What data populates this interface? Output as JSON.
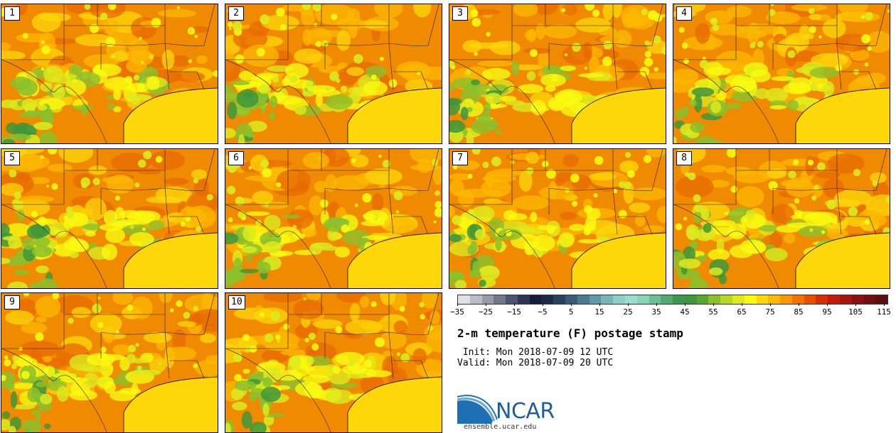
{
  "panels": [
    {
      "label": "1"
    },
    {
      "label": "2"
    },
    {
      "label": "3"
    },
    {
      "label": "4"
    },
    {
      "label": "5"
    },
    {
      "label": "6"
    },
    {
      "label": "7"
    },
    {
      "label": "8"
    },
    {
      "label": "9"
    },
    {
      "label": "10"
    }
  ],
  "colorbar": {
    "tick_labels": [
      "−35",
      "−25",
      "−15",
      "−5",
      "5",
      "15",
      "25",
      "35",
      "45",
      "55",
      "65",
      "75",
      "85",
      "95",
      "105",
      "115"
    ],
    "colors": [
      "#e0e0e6",
      "#bcbcc8",
      "#9a9aaa",
      "#72788c",
      "#4a5470",
      "#2a3656",
      "#141e3c",
      "#1a2a48",
      "#2a4060",
      "#3a5a78",
      "#4c7890",
      "#6098a6",
      "#78b4b8",
      "#90cec8",
      "#9adcd0",
      "#8ad2b8",
      "#6cbe94",
      "#52aa70",
      "#3e9650",
      "#40963a",
      "#5aa634",
      "#8cc02a",
      "#b8d624",
      "#dcea1e",
      "#fafa10",
      "#fed70a",
      "#fcb800",
      "#f89800",
      "#f27400",
      "#e85000",
      "#d82e06",
      "#c41a0c",
      "#a81410",
      "#8c1010",
      "#701010",
      "#581010"
    ]
  },
  "title": "2-m temperature (F) postage stamp",
  "init": " Init: Mon 2018-07-09 12 UTC",
  "valid": "Valid: Mon 2018-07-09 20 UTC",
  "logo": {
    "text": "NCAR",
    "colors": {
      "arc_blue": "#1f6fb4",
      "arc_light": "#6aa4d8"
    }
  },
  "site": "ensemble.ucar.edu",
  "map_colors": {
    "hot": "#f08a00",
    "warm": "#fcb800",
    "mild": "#fed70a",
    "yellow": "#fafa10",
    "lime": "#dcea1e",
    "green": "#8cc02a",
    "dkgreen": "#40963a",
    "gulf": "#fed70a",
    "deep": "#e86a00"
  }
}
